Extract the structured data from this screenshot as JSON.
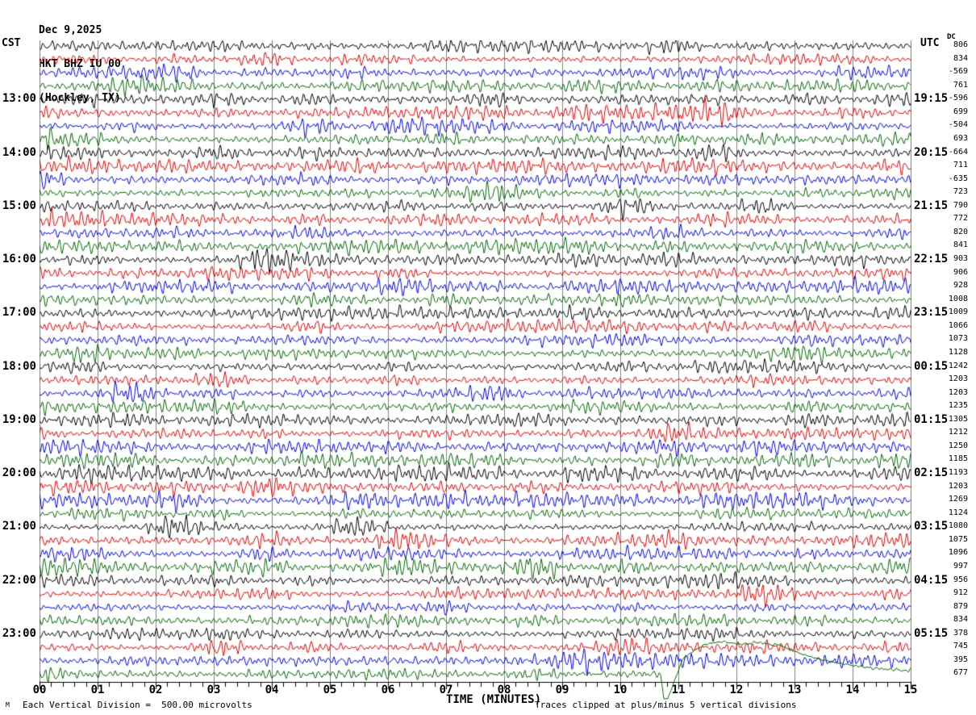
{
  "header": {
    "date": "Dec 9,2025",
    "station": "HKT BHZ IU 00",
    "location": "(Hockley, TX)"
  },
  "left_axis": {
    "label": "CST",
    "hour_labels": [
      {
        "row": 4,
        "text": "13:00"
      },
      {
        "row": 8,
        "text": "14:00"
      },
      {
        "row": 12,
        "text": "15:00"
      },
      {
        "row": 16,
        "text": "16:00"
      },
      {
        "row": 20,
        "text": "17:00"
      },
      {
        "row": 24,
        "text": "18:00"
      },
      {
        "row": 28,
        "text": "19:00"
      },
      {
        "row": 32,
        "text": "20:00"
      },
      {
        "row": 36,
        "text": "21:00"
      },
      {
        "row": 40,
        "text": "22:00"
      },
      {
        "row": 44,
        "text": "23:00"
      }
    ]
  },
  "right_axis": {
    "label": "UTC",
    "dc_label": "DC",
    "hour_labels": [
      {
        "row": 4,
        "text": "19:15"
      },
      {
        "row": 8,
        "text": "20:15"
      },
      {
        "row": 12,
        "text": "21:15"
      },
      {
        "row": 16,
        "text": "22:15"
      },
      {
        "row": 20,
        "text": "23:15"
      },
      {
        "row": 24,
        "text": "00:15"
      },
      {
        "row": 28,
        "text": "01:15"
      },
      {
        "row": 32,
        "text": "02:15"
      },
      {
        "row": 36,
        "text": "03:15"
      },
      {
        "row": 40,
        "text": "04:15"
      },
      {
        "row": 44,
        "text": "05:15"
      }
    ],
    "dc_values": [
      "806",
      "834",
      "-569",
      "761",
      "-596",
      "699",
      "-504",
      "693",
      "-664",
      "711",
      "-635",
      "723",
      "790",
      "772",
      "820",
      "841",
      "903",
      "906",
      "928",
      "1008",
      "1009",
      "1066",
      "1073",
      "1128",
      "1242",
      "1203",
      "1203",
      "1235",
      "1305",
      "1212",
      "1250",
      "1185",
      "1193",
      "1203",
      "1269",
      "1124",
      "1080",
      "1075",
      "1096",
      "997",
      "956",
      "912",
      "879",
      "834",
      "378",
      "745",
      "395",
      "677"
    ]
  },
  "x_axis": {
    "title": "TIME (MINUTES)",
    "minute_labels": [
      "00",
      "01",
      "02",
      "03",
      "04",
      "05",
      "06",
      "07",
      "08",
      "09",
      "10",
      "11",
      "12",
      "13",
      "14",
      "15"
    ]
  },
  "footer": {
    "left_note": "Each Vertical Division =  500.00 microvolts",
    "right_note": "Traces clipped at plus/minus 5 vertical divisions",
    "artifact_glyph": "M"
  },
  "chart_data": {
    "type": "line",
    "subtype": "helicorder-seismogram",
    "title": "HKT BHZ IU 00 (Hockley, TX) Dec 9,2025",
    "rows": 48,
    "minutes_per_row": 15,
    "x_range_minutes": [
      0,
      15
    ],
    "minor_ticks_per_minute": 5,
    "grid": "vertical gridline at every minute",
    "vertical_division_microvolts": 500.0,
    "clip_divisions": 5,
    "trace_colors": [
      "#000000",
      "#e00000",
      "#0000dd",
      "#006600"
    ],
    "grid_color": "#808080",
    "axis_color": "#000000",
    "first_row_color": "black, rows cycle black/red/blue/green; hour rows (black) labeled on both axes",
    "waveform": "continuous microseism background noise on all 48 rows, typical amplitude about one vertical division with irregular bursts; exact sample values not recoverable from image",
    "event": {
      "row": 47,
      "color": "#006600",
      "start_minute": 10.7,
      "description": "large transient on last (green, 23:45 CST) trace: sharp downward clipped spike below the time axis at ~10.7 min, followed by positive overshoot of ~4-5 divisions that decays back to baseline by ~14 min while background noise is suppressed"
    }
  }
}
